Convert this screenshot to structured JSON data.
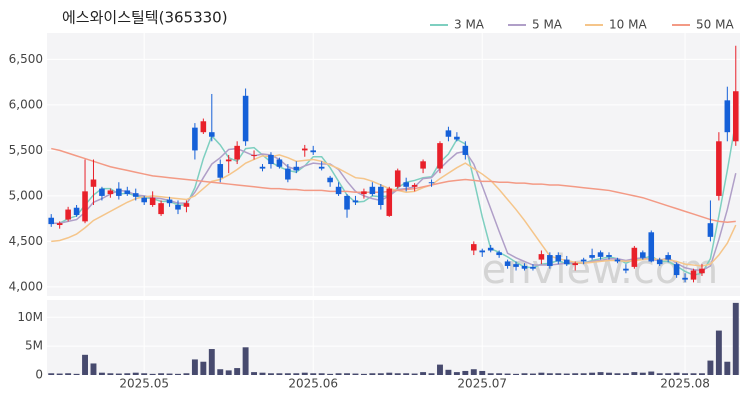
{
  "chart_data": {
    "type": "candlestick",
    "title": "에스와이스틸텍(365330)",
    "watermark": "enview.com",
    "categories": [
      null,
      null,
      null,
      null,
      null,
      null,
      null,
      null,
      null,
      null,
      null,
      "2025.05",
      null,
      null,
      null,
      null,
      null,
      null,
      null,
      null,
      null,
      null,
      null,
      null,
      null,
      null,
      null,
      null,
      null,
      null,
      null,
      "2025.06",
      null,
      null,
      null,
      null,
      null,
      null,
      null,
      null,
      null,
      null,
      null,
      null,
      null,
      null,
      null,
      null,
      null,
      null,
      null,
      "2025.07",
      null,
      null,
      null,
      null,
      null,
      null,
      null,
      null,
      null,
      null,
      null,
      null,
      null,
      null,
      null,
      null,
      null,
      null,
      null,
      null,
      null,
      null,
      null,
      "2025.08",
      null,
      null,
      null,
      null,
      null,
      null
    ],
    "up_color": "#e8202a",
    "down_color": "#1560d8",
    "open": [
      4760,
      4680,
      4740,
      4870,
      4720,
      5100,
      5080,
      5020,
      5080,
      5060,
      5030,
      4980,
      4900,
      4800,
      4960,
      4900,
      4880,
      5750,
      5700,
      5700,
      5350,
      5380,
      5400,
      6100,
      5450,
      5320,
      5450,
      5400,
      5300,
      5320,
      5500,
      5500,
      5320,
      5200,
      5100,
      5000,
      4950,
      5020,
      5100,
      5100,
      4780,
      5100,
      5150,
      5100,
      5300,
      5150,
      5300,
      5720,
      5650,
      5550,
      4400,
      4400,
      4430,
      4380,
      4280,
      4250,
      4230,
      4220,
      4300,
      4350,
      4350,
      4300,
      4240,
      4300,
      4350,
      4380,
      4350,
      4300,
      4200,
      4220,
      4380,
      4600,
      4300,
      4350,
      4250,
      4100,
      4080,
      4150,
      4700,
      5000,
      6050,
      5600
    ],
    "high": [
      4800,
      4720,
      4880,
      4900,
      5400,
      5400,
      5100,
      5080,
      5150,
      5100,
      5080,
      5000,
      5050,
      4950,
      4990,
      4950,
      4950,
      5800,
      5850,
      6120,
      5400,
      5450,
      5600,
      6180,
      5500,
      5350,
      5480,
      5420,
      5350,
      5380,
      5560,
      5550,
      5380,
      5220,
      5150,
      5020,
      5000,
      5080,
      5150,
      5130,
      5100,
      5300,
      5200,
      5140,
      5400,
      5180,
      5600,
      5760,
      5700,
      5600,
      4500,
      4420,
      4460,
      4400,
      4300,
      4280,
      4260,
      4250,
      4400,
      4380,
      4380,
      4340,
      4280,
      4320,
      4420,
      4400,
      4380,
      4320,
      4250,
      4450,
      4400,
      4620,
      4320,
      4380,
      4270,
      4150,
      4200,
      4250,
      4950,
      5700,
      6200,
      6650
    ],
    "low": [
      4660,
      4640,
      4720,
      4770,
      4700,
      4900,
      4950,
      4980,
      4960,
      5000,
      4950,
      4900,
      4880,
      4780,
      4880,
      4800,
      4820,
      5400,
      5680,
      5600,
      5150,
      5250,
      5350,
      5550,
      5400,
      5270,
      5300,
      5300,
      5150,
      5250,
      5430,
      5450,
      5280,
      5100,
      5000,
      4760,
      4900,
      4970,
      5000,
      4850,
      4770,
      5080,
      5050,
      5050,
      5250,
      5100,
      5250,
      5600,
      5600,
      5400,
      4350,
      4330,
      4380,
      4320,
      4200,
      4180,
      4180,
      4180,
      4250,
      4200,
      4250,
      4230,
      4180,
      4250,
      4300,
      4300,
      4300,
      4260,
      4150,
      4200,
      4300,
      4270,
      4230,
      4270,
      4100,
      4050,
      4050,
      4120,
      4500,
      4950,
      5600,
      5550
    ],
    "close": [
      4690,
      4700,
      4850,
      4790,
      5050,
      5180,
      5000,
      5060,
      5000,
      5020,
      4990,
      4930,
      4980,
      4920,
      4920,
      4850,
      4920,
      5500,
      5820,
      5650,
      5200,
      5400,
      5550,
      5600,
      5450,
      5300,
      5350,
      5320,
      5180,
      5280,
      5520,
      5480,
      5300,
      5150,
      5020,
      4850,
      4930,
      5050,
      5020,
      4900,
      5080,
      5280,
      5100,
      5120,
      5380,
      5140,
      5580,
      5650,
      5620,
      5450,
      4470,
      4380,
      4400,
      4350,
      4230,
      4220,
      4200,
      4200,
      4360,
      4230,
      4280,
      4250,
      4260,
      4280,
      4320,
      4330,
      4330,
      4280,
      4180,
      4430,
      4320,
      4280,
      4250,
      4300,
      4130,
      4080,
      4180,
      4200,
      4550,
      5600,
      5700,
      6150
    ],
    "series": [
      {
        "name": "3 MA",
        "color": "#7ecfc0",
        "values": [
          4700,
          4700,
          4750,
          4780,
          4900,
          5010,
          5080,
          5080,
          5020,
          5030,
          5000,
          4980,
          4970,
          4940,
          4940,
          4900,
          4900,
          5090,
          5410,
          5660,
          5560,
          5420,
          5380,
          5520,
          5530,
          5450,
          5370,
          5320,
          5280,
          5260,
          5330,
          5430,
          5430,
          5310,
          5160,
          5010,
          4930,
          4940,
          5000,
          4990,
          5000,
          5090,
          5150,
          5170,
          5200,
          5210,
          5370,
          5460,
          5620,
          5570,
          5180,
          4770,
          4420,
          4380,
          4330,
          4270,
          4220,
          4210,
          4250,
          4260,
          4290,
          4250,
          4260,
          4260,
          4290,
          4310,
          4330,
          4310,
          4260,
          4300,
          4310,
          4340,
          4280,
          4280,
          4230,
          4170,
          4130,
          4150,
          4310,
          4780,
          5280,
          5820
        ]
      },
      {
        "name": "5 MA",
        "color": "#b09fc8",
        "values": [
          4700,
          4700,
          4720,
          4740,
          4820,
          4930,
          4970,
          5020,
          5060,
          5050,
          5010,
          5000,
          4980,
          4970,
          4950,
          4920,
          4920,
          5040,
          5200,
          5350,
          5420,
          5510,
          5520,
          5480,
          5440,
          5460,
          5450,
          5400,
          5320,
          5290,
          5330,
          5360,
          5350,
          5350,
          5290,
          5160,
          5050,
          5000,
          4970,
          4950,
          5000,
          5070,
          5080,
          5100,
          5190,
          5200,
          5300,
          5390,
          5470,
          5490,
          5350,
          5110,
          4860,
          4610,
          4370,
          4320,
          4280,
          4240,
          4240,
          4240,
          4250,
          4260,
          4270,
          4260,
          4280,
          4290,
          4310,
          4310,
          4290,
          4310,
          4320,
          4300,
          4290,
          4320,
          4260,
          4210,
          4190,
          4180,
          4230,
          4520,
          4850,
          5250
        ]
      },
      {
        "name": "10 MA",
        "color": "#f5c58a",
        "values": [
          4500,
          4510,
          4540,
          4580,
          4650,
          4730,
          4780,
          4830,
          4880,
          4930,
          4970,
          4990,
          5000,
          4990,
          4980,
          4970,
          4960,
          5000,
          5080,
          5160,
          5180,
          5230,
          5290,
          5360,
          5400,
          5440,
          5430,
          5450,
          5420,
          5380,
          5390,
          5400,
          5380,
          5340,
          5300,
          5250,
          5200,
          5190,
          5160,
          5120,
          5080,
          5060,
          5040,
          5050,
          5090,
          5120,
          5190,
          5250,
          5310,
          5360,
          5300,
          5240,
          5170,
          5070,
          4960,
          4850,
          4730,
          4600,
          4470,
          4340,
          4310,
          4290,
          4270,
          4260,
          4270,
          4280,
          4290,
          4290,
          4280,
          4290,
          4300,
          4310,
          4300,
          4300,
          4280,
          4250,
          4240,
          4230,
          4250,
          4350,
          4480,
          4680
        ]
      },
      {
        "name": "50 MA",
        "color": "#f39a85",
        "values": [
          5520,
          5500,
          5470,
          5440,
          5410,
          5380,
          5350,
          5320,
          5300,
          5280,
          5260,
          5240,
          5220,
          5210,
          5200,
          5190,
          5180,
          5170,
          5160,
          5150,
          5140,
          5130,
          5120,
          5110,
          5100,
          5090,
          5080,
          5080,
          5070,
          5070,
          5060,
          5060,
          5060,
          5050,
          5050,
          5050,
          5040,
          5040,
          5040,
          5040,
          5050,
          5060,
          5070,
          5080,
          5100,
          5120,
          5140,
          5160,
          5170,
          5180,
          5170,
          5160,
          5160,
          5150,
          5150,
          5140,
          5140,
          5130,
          5130,
          5120,
          5120,
          5110,
          5100,
          5090,
          5080,
          5070,
          5060,
          5040,
          5020,
          5000,
          4980,
          4950,
          4920,
          4890,
          4860,
          4830,
          4800,
          4770,
          4740,
          4720,
          4710,
          4720
        ]
      }
    ],
    "ylim": [
      3900,
      6790
    ],
    "yticks": [
      {
        "value": 4000,
        "label": "4,000"
      },
      {
        "value": 4500,
        "label": "4,500"
      },
      {
        "value": 5000,
        "label": "5,000"
      },
      {
        "value": 5500,
        "label": "5,500"
      },
      {
        "value": 6000,
        "label": "6,000"
      },
      {
        "value": 6500,
        "label": "6,500"
      }
    ],
    "volume": {
      "color": "#474a6e",
      "values": [
        300000,
        250000,
        300000,
        200000,
        3500000,
        2000000,
        400000,
        300000,
        250000,
        300000,
        400000,
        300000,
        200000,
        300000,
        250000,
        200000,
        300000,
        2700000,
        2300000,
        4500000,
        1000000,
        800000,
        1200000,
        4800000,
        500000,
        400000,
        300000,
        300000,
        300000,
        300000,
        400000,
        300000,
        300000,
        200000,
        300000,
        300000,
        250000,
        200000,
        300000,
        300000,
        400000,
        300000,
        300000,
        250000,
        500000,
        300000,
        1800000,
        900000,
        500000,
        700000,
        1000000,
        700000,
        300000,
        300000,
        250000,
        200000,
        300000,
        250000,
        400000,
        300000,
        300000,
        250000,
        300000,
        300000,
        400000,
        500000,
        400000,
        300000,
        300000,
        500000,
        400000,
        600000,
        300000,
        300000,
        400000,
        300000,
        300000,
        300000,
        2500000,
        7700000,
        2300000,
        12500000
      ],
      "ylim": [
        0,
        13000000
      ],
      "yticks": [
        {
          "value": 0,
          "label": "0"
        },
        {
          "value": 5000000,
          "label": "5M"
        },
        {
          "value": 10000000,
          "label": "10M"
        }
      ]
    },
    "grid": true
  }
}
